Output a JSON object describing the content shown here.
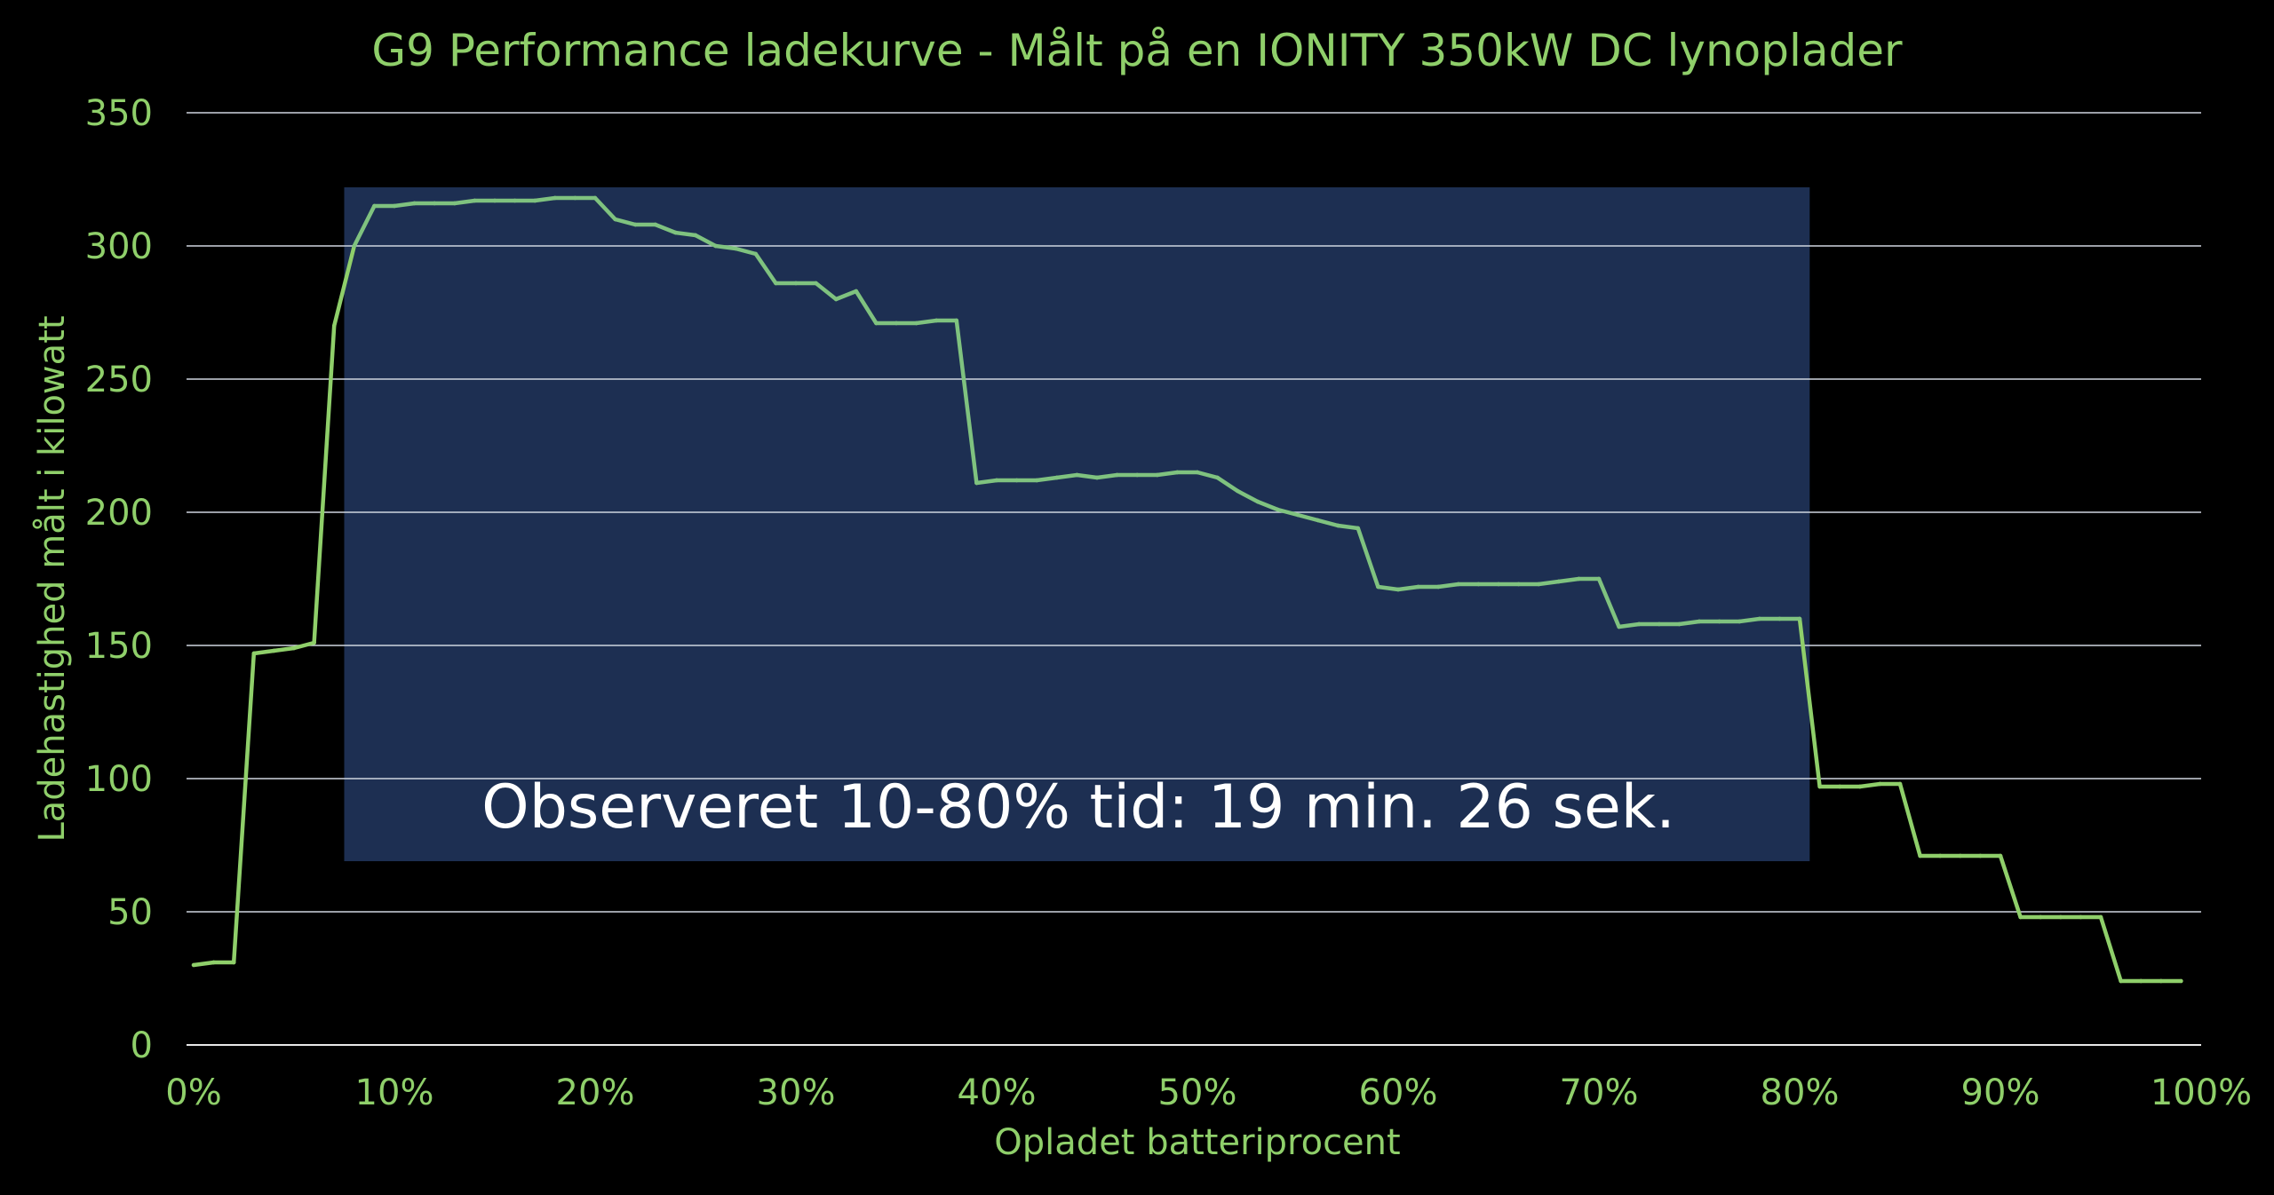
{
  "chart_data": {
    "type": "line",
    "title": "G9 Performance ladekurve - Målt på en IONITY 350kW DC lynoplader",
    "xlabel": "Opladet batteriprocent",
    "ylabel": "Ladehastighed målt i kilowatt",
    "xlim": [
      0,
      100
    ],
    "ylim": [
      0,
      350
    ],
    "x_ticks": [
      "0%",
      "10%",
      "20%",
      "30%",
      "40%",
      "50%",
      "60%",
      "70%",
      "80%",
      "90%",
      "100%"
    ],
    "y_ticks": [
      "0",
      "50",
      "100",
      "150",
      "200",
      "250",
      "300",
      "350"
    ],
    "grid": "horizontal",
    "colors": {
      "background": "#000000",
      "text": "#8fcf6a",
      "line_outside": "#8fcf6a",
      "line_inside": "#7fc27f",
      "highlight_box": "#1d2f52",
      "grid": "#cfd6e0",
      "annotation_text": "#ffffff"
    },
    "highlight_region": {
      "x_from": 7.5,
      "x_to": 80.5,
      "y_from": 69,
      "y_to": 322
    },
    "annotation": "Observeret 10-80% tid: 19 min. 26 sek.",
    "series": [
      {
        "points": [
          [
            0,
            30
          ],
          [
            1,
            31
          ],
          [
            2,
            31
          ],
          [
            3,
            147
          ],
          [
            4,
            148
          ],
          [
            5,
            149
          ],
          [
            6,
            151
          ],
          [
            7,
            270
          ],
          [
            8,
            300
          ],
          [
            9,
            315
          ],
          [
            10,
            315
          ],
          [
            11,
            316
          ],
          [
            12,
            316
          ],
          [
            13,
            316
          ],
          [
            14,
            317
          ],
          [
            15,
            317
          ],
          [
            16,
            317
          ],
          [
            17,
            317
          ],
          [
            18,
            318
          ],
          [
            19,
            318
          ],
          [
            20,
            318
          ],
          [
            21,
            310
          ],
          [
            22,
            308
          ],
          [
            23,
            308
          ],
          [
            24,
            305
          ],
          [
            25,
            304
          ],
          [
            26,
            300
          ],
          [
            27,
            299
          ],
          [
            28,
            297
          ],
          [
            29,
            286
          ],
          [
            30,
            286
          ],
          [
            31,
            286
          ],
          [
            32,
            280
          ],
          [
            33,
            283
          ],
          [
            34,
            271
          ],
          [
            35,
            271
          ],
          [
            36,
            271
          ],
          [
            37,
            272
          ],
          [
            38,
            272
          ],
          [
            39,
            211
          ],
          [
            40,
            212
          ],
          [
            41,
            212
          ],
          [
            42,
            212
          ],
          [
            43,
            213
          ],
          [
            44,
            214
          ],
          [
            45,
            213
          ],
          [
            46,
            214
          ],
          [
            47,
            214
          ],
          [
            48,
            214
          ],
          [
            49,
            215
          ],
          [
            50,
            215
          ],
          [
            51,
            213
          ],
          [
            52,
            208
          ],
          [
            53,
            204
          ],
          [
            54,
            201
          ],
          [
            55,
            199
          ],
          [
            56,
            197
          ],
          [
            57,
            195
          ],
          [
            58,
            194
          ],
          [
            59,
            172
          ],
          [
            60,
            171
          ],
          [
            61,
            172
          ],
          [
            62,
            172
          ],
          [
            63,
            173
          ],
          [
            64,
            173
          ],
          [
            65,
            173
          ],
          [
            66,
            173
          ],
          [
            67,
            173
          ],
          [
            68,
            174
          ],
          [
            69,
            175
          ],
          [
            70,
            175
          ],
          [
            71,
            157
          ],
          [
            72,
            158
          ],
          [
            73,
            158
          ],
          [
            74,
            158
          ],
          [
            75,
            159
          ],
          [
            76,
            159
          ],
          [
            77,
            159
          ],
          [
            78,
            160
          ],
          [
            79,
            160
          ],
          [
            80,
            160
          ],
          [
            81,
            97
          ],
          [
            82,
            97
          ],
          [
            83,
            97
          ],
          [
            84,
            98
          ],
          [
            85,
            98
          ],
          [
            86,
            71
          ],
          [
            87,
            71
          ],
          [
            88,
            71
          ],
          [
            89,
            71
          ],
          [
            90,
            71
          ],
          [
            91,
            48
          ],
          [
            92,
            48
          ],
          [
            93,
            48
          ],
          [
            94,
            48
          ],
          [
            95,
            48
          ],
          [
            96,
            24
          ],
          [
            97,
            24
          ],
          [
            98,
            24
          ],
          [
            99,
            24
          ]
        ]
      }
    ]
  }
}
